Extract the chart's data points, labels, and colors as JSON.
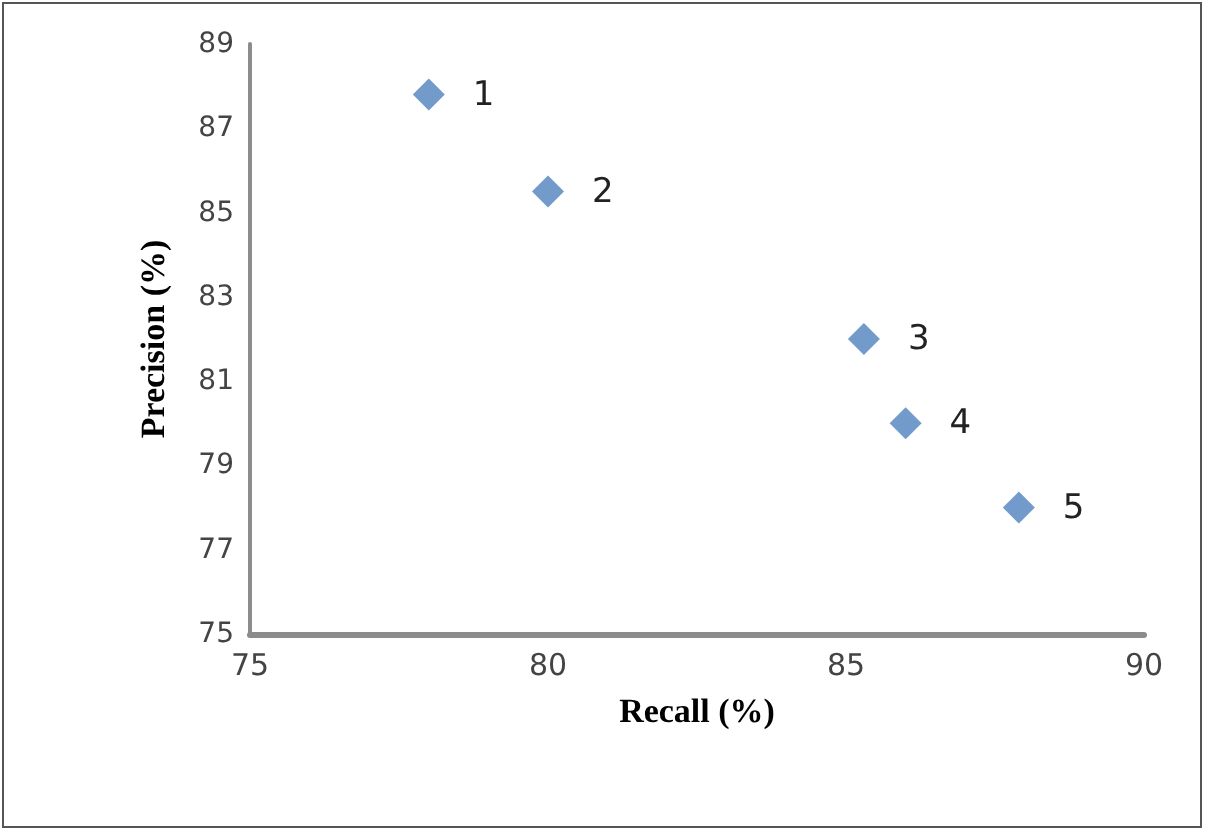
{
  "chart_data": {
    "type": "scatter",
    "xlabel": "Recall (%)",
    "ylabel": "Precision (%)",
    "x": [
      78,
      80,
      85.3,
      86,
      87.9
    ],
    "values": [
      87.8,
      85.5,
      82,
      80,
      78
    ],
    "color": "#4f81bd",
    "marker": "diamond",
    "grid": false,
    "xlim": [
      75,
      90
    ],
    "xticks": [
      75,
      80,
      85,
      90
    ],
    "ylim": [
      75,
      89
    ],
    "yticks": [
      75,
      77,
      79,
      81,
      83,
      85,
      87,
      89
    ],
    "annotations": [
      {
        "text": "1",
        "x": 78,
        "y": 87.8
      },
      {
        "text": "2",
        "x": 80,
        "y": 85.5
      },
      {
        "text": "3",
        "x": 85.3,
        "y": 82
      },
      {
        "text": "4",
        "x": 86,
        "y": 80
      },
      {
        "text": "5",
        "x": 87.9,
        "y": 78
      }
    ]
  }
}
